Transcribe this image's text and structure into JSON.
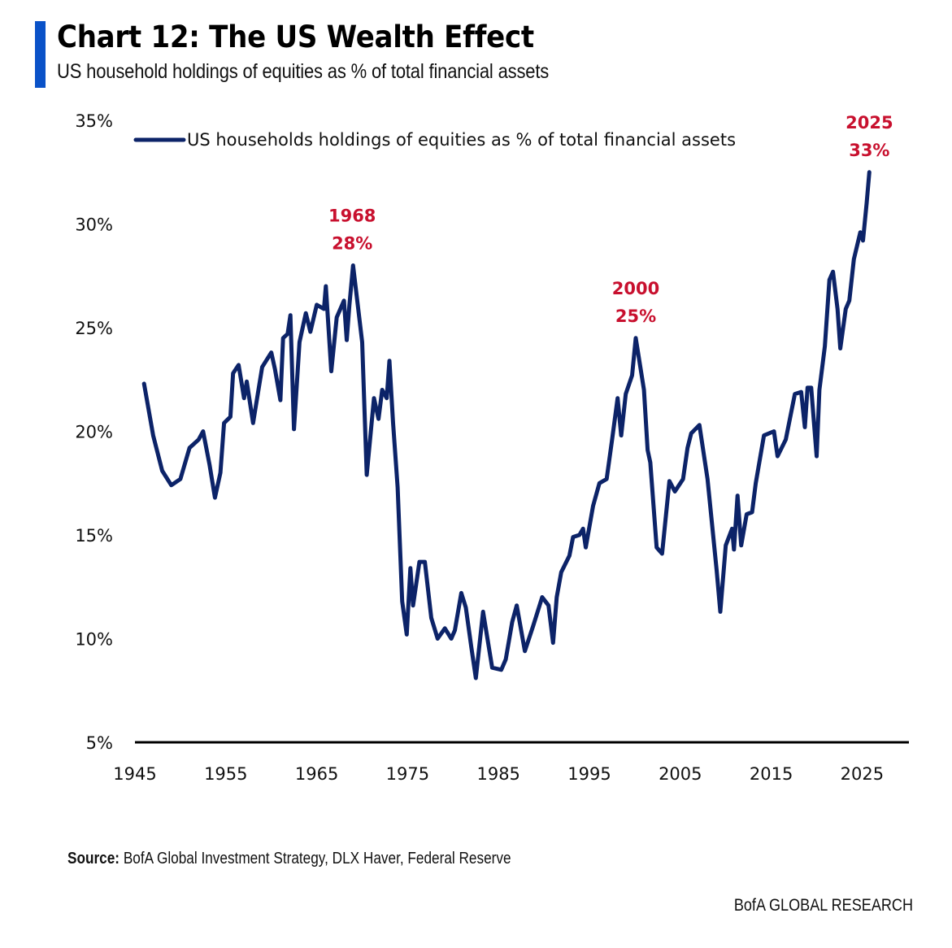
{
  "header": {
    "title": "Chart 12: The US Wealth Effect",
    "subtitle": "US household holdings of equities as % of total financial assets",
    "accent_color": "#0a52c8"
  },
  "footer": {
    "source_label": "Source:",
    "source_text": " BofA Global Investment Strategy, DLX Haver, Federal Reserve",
    "brand": "BofA GLOBAL RESEARCH"
  },
  "chart_data": {
    "type": "line",
    "title": "Chart 12: The US Wealth Effect",
    "subtitle": "US household holdings of equities as % of total financial assets",
    "xlabel": "",
    "ylabel": "",
    "xlim": [
      1945,
      2030
    ],
    "ylim": [
      5,
      35
    ],
    "x_ticks": [
      1945,
      1955,
      1965,
      1975,
      1985,
      1995,
      2005,
      2015,
      2025
    ],
    "x_tick_labels": [
      "1945",
      "1955",
      "1965",
      "1975",
      "1985",
      "1995",
      "2005",
      "2015",
      "2025"
    ],
    "y_ticks": [
      5,
      10,
      15,
      20,
      25,
      30,
      35
    ],
    "y_tick_labels": [
      "5%",
      "10%",
      "15%",
      "20%",
      "25%",
      "30%",
      "35%"
    ],
    "grid": false,
    "legend": {
      "placement": "top",
      "entries": [
        "US households holdings of equities as % of total financial assets"
      ]
    },
    "series": [
      {
        "name": "US households holdings of equities as % of total financial assets",
        "color": "#0c2368",
        "x": [
          1946.0,
          1947.0,
          1948.0,
          1949.0,
          1950.0,
          1951.0,
          1952.0,
          1952.5,
          1953.2,
          1953.8,
          1954.4,
          1954.8,
          1955.5,
          1955.8,
          1956.4,
          1957.0,
          1957.3,
          1958.0,
          1959.0,
          1960.0,
          1960.4,
          1961.0,
          1961.3,
          1961.8,
          1962.1,
          1962.5,
          1963.1,
          1963.8,
          1964.3,
          1965.0,
          1965.8,
          1966.0,
          1966.6,
          1967.2,
          1968.0,
          1968.3,
          1968.6,
          1969.0,
          1970.0,
          1970.5,
          1971.3,
          1971.8,
          1972.2,
          1972.7,
          1973.0,
          1973.4,
          1973.9,
          1974.4,
          1974.9,
          1975.3,
          1975.6,
          1976.3,
          1976.9,
          1977.6,
          1978.3,
          1979.1,
          1979.8,
          1980.2,
          1980.9,
          1981.4,
          1982.0,
          1982.5,
          1983.3,
          1984.3,
          1985.3,
          1985.8,
          1986.5,
          1987.0,
          1987.9,
          1988.8,
          1989.8,
          1990.5,
          1991.0,
          1991.4,
          1991.9,
          1992.8,
          1993.2,
          1993.9,
          1994.3,
          1994.6,
          1995.4,
          1996.1,
          1996.9,
          1997.5,
          1998.1,
          1998.5,
          1999.0,
          1999.7,
          2000.1,
          2001.0,
          2001.4,
          2001.7,
          2002.4,
          2003.0,
          2003.8,
          2004.4,
          2005.3,
          2005.8,
          2006.2,
          2007.1,
          2008.0,
          2009.0,
          2009.4,
          2010.0,
          2010.7,
          2010.9,
          2011.3,
          2011.7,
          2012.3,
          2012.9,
          2013.3,
          2014.2,
          2015.3,
          2015.7,
          2016.6,
          2017.6,
          2018.3,
          2018.7,
          2019.0,
          2019.4,
          2020.0,
          2020.3,
          2020.9,
          2021.4,
          2021.8,
          2022.3,
          2022.6,
          2023.2,
          2023.6,
          2024.1,
          2024.8,
          2025.1,
          2025.5,
          2025.8
        ],
        "values": [
          22.3,
          19.8,
          18.1,
          17.4,
          17.7,
          19.2,
          19.6,
          20.0,
          18.4,
          16.8,
          18.0,
          20.4,
          20.7,
          22.8,
          23.2,
          21.6,
          22.4,
          20.4,
          23.1,
          23.8,
          23.0,
          21.5,
          24.5,
          24.7,
          25.6,
          20.1,
          24.3,
          25.7,
          24.8,
          26.1,
          25.9,
          27.0,
          22.9,
          25.5,
          26.3,
          24.4,
          26.1,
          28.0,
          24.3,
          17.9,
          21.6,
          20.6,
          22.0,
          21.6,
          23.4,
          20.4,
          17.3,
          11.8,
          10.2,
          13.4,
          11.6,
          13.7,
          13.7,
          11.0,
          10.0,
          10.5,
          10.0,
          10.4,
          12.2,
          11.5,
          9.6,
          8.1,
          11.3,
          8.6,
          8.5,
          9.0,
          10.8,
          11.6,
          9.4,
          10.6,
          12.0,
          11.6,
          9.8,
          12.0,
          13.2,
          14.0,
          14.9,
          15.0,
          15.3,
          14.4,
          16.4,
          17.5,
          17.7,
          19.6,
          21.6,
          19.8,
          21.8,
          22.7,
          24.5,
          22.0,
          19.1,
          18.5,
          14.4,
          14.1,
          17.6,
          17.1,
          17.7,
          19.2,
          19.9,
          20.3,
          17.7,
          13.3,
          11.3,
          14.5,
          15.3,
          14.3,
          16.9,
          14.5,
          16.0,
          16.1,
          17.5,
          19.8,
          20.0,
          18.8,
          19.6,
          21.8,
          21.9,
          20.2,
          22.1,
          22.1,
          18.8,
          22.0,
          24.1,
          27.3,
          27.7,
          25.9,
          24.0,
          25.9,
          26.3,
          28.3,
          29.6,
          29.2,
          31.0,
          32.5
        ]
      }
    ],
    "annotations": [
      {
        "year_label": "1968",
        "value_label": "28%",
        "x": 1968.9,
        "y": 28.0,
        "color": "#c8102e"
      },
      {
        "year_label": "2000",
        "value_label": "25%",
        "x": 2000.1,
        "y": 24.5,
        "color": "#c8102e"
      },
      {
        "year_label": "2025",
        "value_label": "33%",
        "x": 2025.8,
        "y": 32.5,
        "color": "#c8102e"
      }
    ]
  }
}
